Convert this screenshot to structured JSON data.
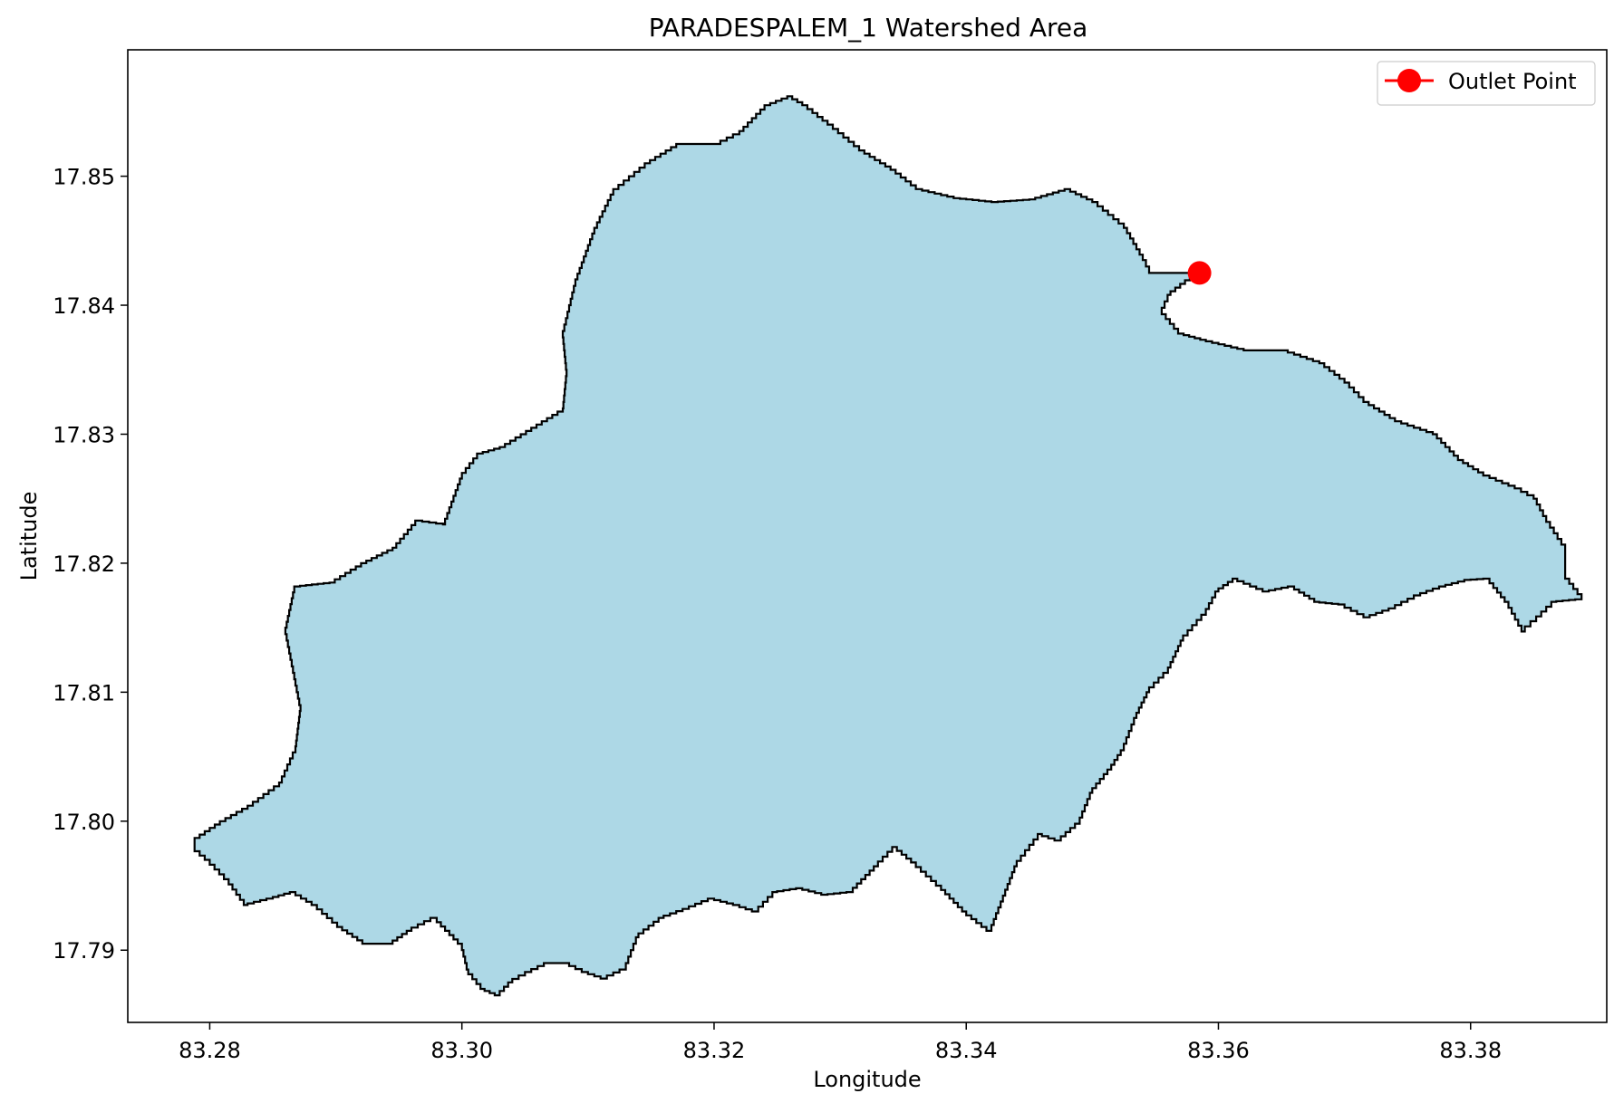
{
  "chart_data": {
    "type": "map",
    "title": "PARADESPALEM_1 Watershed Area",
    "xlabel": "Longitude",
    "ylabel": "Latitude",
    "xlim": [
      83.2735,
      83.3908
    ],
    "ylim": [
      17.7844,
      17.8598
    ],
    "x_ticks": [
      83.28,
      83.3,
      83.32,
      83.34,
      83.36,
      83.38
    ],
    "x_tick_labels": [
      "83.28",
      "83.30",
      "83.32",
      "83.34",
      "83.36",
      "83.38"
    ],
    "y_ticks": [
      17.79,
      17.8,
      17.81,
      17.82,
      17.83,
      17.84,
      17.85
    ],
    "y_tick_labels": [
      "17.79",
      "17.80",
      "17.81",
      "17.82",
      "17.83",
      "17.84",
      "17.85"
    ],
    "grid": false,
    "legend": {
      "location": "top-right",
      "entries": [
        "Outlet Point"
      ]
    },
    "colors": {
      "watershed_fill": "#add8e6",
      "watershed_edge": "#000000",
      "outlet": "#ff0000"
    },
    "outlet_point": {
      "name": "Outlet Point",
      "lon": 83.3585,
      "lat": 17.8425
    },
    "watershed_boundary": [
      [
        83.2788,
        17.7987
      ],
      [
        83.2808,
        17.8
      ],
      [
        83.283,
        17.8012
      ],
      [
        83.2855,
        17.803
      ],
      [
        83.2868,
        17.8058
      ],
      [
        83.2872,
        17.809
      ],
      [
        83.2866,
        17.812
      ],
      [
        83.286,
        17.815
      ],
      [
        83.2867,
        17.8182
      ],
      [
        83.2895,
        17.8185
      ],
      [
        83.292,
        17.82
      ],
      [
        83.2945,
        17.8212
      ],
      [
        83.2963,
        17.8233
      ],
      [
        83.2985,
        17.823
      ],
      [
        83.3,
        17.827
      ],
      [
        83.3012,
        17.8285
      ],
      [
        83.303,
        17.829
      ],
      [
        83.3055,
        17.8305
      ],
      [
        83.308,
        17.832
      ],
      [
        83.3083,
        17.835
      ],
      [
        83.308,
        17.838
      ],
      [
        83.309,
        17.842
      ],
      [
        83.3105,
        17.846
      ],
      [
        83.312,
        17.849
      ],
      [
        83.3145,
        17.851
      ],
      [
        83.317,
        17.8525
      ],
      [
        83.32,
        17.8525
      ],
      [
        83.322,
        17.8535
      ],
      [
        83.324,
        17.8555
      ],
      [
        83.3258,
        17.8562
      ],
      [
        83.327,
        17.8555
      ],
      [
        83.329,
        17.854
      ],
      [
        83.3315,
        17.852
      ],
      [
        83.334,
        17.8505
      ],
      [
        83.336,
        17.849
      ],
      [
        83.339,
        17.8483
      ],
      [
        83.342,
        17.848
      ],
      [
        83.345,
        17.8482
      ],
      [
        83.3478,
        17.849
      ],
      [
        83.35,
        17.848
      ],
      [
        83.3525,
        17.846
      ],
      [
        83.354,
        17.8435
      ],
      [
        83.3545,
        17.8425
      ],
      [
        83.3585,
        17.8425
      ],
      [
        83.3562,
        17.8408
      ],
      [
        83.3555,
        17.8393
      ],
      [
        83.3568,
        17.8378
      ],
      [
        83.359,
        17.8372
      ],
      [
        83.362,
        17.8365
      ],
      [
        83.365,
        17.8365
      ],
      [
        83.368,
        17.8355
      ],
      [
        83.37,
        17.834
      ],
      [
        83.3715,
        17.8325
      ],
      [
        83.374,
        17.831
      ],
      [
        83.377,
        17.83
      ],
      [
        83.379,
        17.828
      ],
      [
        83.381,
        17.8268
      ],
      [
        83.3835,
        17.8258
      ],
      [
        83.385,
        17.825
      ],
      [
        83.386,
        17.8232
      ],
      [
        83.3875,
        17.821
      ],
      [
        83.3875,
        17.8188
      ],
      [
        83.3888,
        17.8172
      ],
      [
        83.3868,
        17.817
      ],
      [
        83.3852,
        17.8155
      ],
      [
        83.3843,
        17.8147
      ],
      [
        83.383,
        17.817
      ],
      [
        83.3815,
        17.8188
      ],
      [
        83.38,
        17.8187
      ],
      [
        83.378,
        17.8182
      ],
      [
        83.376,
        17.8175
      ],
      [
        83.374,
        17.8165
      ],
      [
        83.372,
        17.8158
      ],
      [
        83.37,
        17.8168
      ],
      [
        83.368,
        17.817
      ],
      [
        83.366,
        17.8182
      ],
      [
        83.364,
        17.8178
      ],
      [
        83.3615,
        17.8188
      ],
      [
        83.36,
        17.8178
      ],
      [
        83.359,
        17.816
      ],
      [
        83.3572,
        17.814
      ],
      [
        83.356,
        17.8115
      ],
      [
        83.3545,
        17.81
      ],
      [
        83.3535,
        17.808
      ],
      [
        83.3525,
        17.8055
      ],
      [
        83.3515,
        17.804
      ],
      [
        83.35,
        17.8022
      ],
      [
        83.349,
        17.7998
      ],
      [
        83.3475,
        17.7985
      ],
      [
        83.346,
        17.799
      ],
      [
        83.344,
        17.7965
      ],
      [
        83.342,
        17.7915
      ],
      [
        83.34,
        17.793
      ],
      [
        83.338,
        17.795
      ],
      [
        83.336,
        17.7968
      ],
      [
        83.3345,
        17.798
      ],
      [
        83.333,
        17.7965
      ],
      [
        83.331,
        17.7945
      ],
      [
        83.329,
        17.7943
      ],
      [
        83.327,
        17.7948
      ],
      [
        83.325,
        17.7945
      ],
      [
        83.3235,
        17.793
      ],
      [
        83.322,
        17.7935
      ],
      [
        83.32,
        17.794
      ],
      [
        83.318,
        17.7932
      ],
      [
        83.316,
        17.7925
      ],
      [
        83.314,
        17.791
      ],
      [
        83.313,
        17.7885
      ],
      [
        83.3115,
        17.7878
      ],
      [
        83.31,
        17.7883
      ],
      [
        83.3085,
        17.789
      ],
      [
        83.307,
        17.789
      ],
      [
        83.3055,
        17.7883
      ],
      [
        83.304,
        17.7875
      ],
      [
        83.303,
        17.7865
      ],
      [
        83.3018,
        17.787
      ],
      [
        83.3005,
        17.7885
      ],
      [
        83.3,
        17.7905
      ],
      [
        83.298,
        17.7925
      ],
      [
        83.296,
        17.7915
      ],
      [
        83.2945,
        17.7905
      ],
      [
        83.2925,
        17.7905
      ],
      [
        83.2905,
        17.7918
      ],
      [
        83.2885,
        17.7935
      ],
      [
        83.2868,
        17.7945
      ],
      [
        83.285,
        17.794
      ],
      [
        83.283,
        17.7935
      ],
      [
        83.2815,
        17.7955
      ],
      [
        83.28,
        17.797
      ],
      [
        83.2788,
        17.798
      ]
    ]
  }
}
